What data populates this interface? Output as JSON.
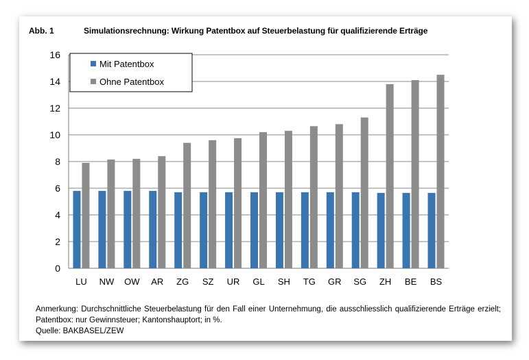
{
  "header": {
    "figure_label": "Abb. 1",
    "title": "Simulationsrechnung: Wirkung Patentbox auf Steuerbelastung für qualifizierende Erträge"
  },
  "footer": {
    "note": "Anmerkung: Durchschnittliche Steuerbelastung für den Fall einer Unternehmung, die ausschliesslich qualifizierende Erträge erzielt; Patentbox: nur Gewinnsteuer; Kantonshauptort; in %.",
    "source": "Quelle: BAKBASEL/ZEW"
  },
  "chart_data": {
    "type": "bar",
    "categories": [
      "LU",
      "NW",
      "OW",
      "AR",
      "ZG",
      "SZ",
      "UR",
      "GL",
      "SH",
      "TG",
      "GR",
      "SG",
      "ZH",
      "BE",
      "BS"
    ],
    "series": [
      {
        "name": "Mit Patentbox",
        "color": "#3a75b0",
        "values": [
          5.8,
          5.8,
          5.8,
          5.8,
          5.7,
          5.7,
          5.7,
          5.7,
          5.7,
          5.7,
          5.7,
          5.7,
          5.65,
          5.65,
          5.65
        ]
      },
      {
        "name": "Ohne Patentbox",
        "color": "#8c8c8c",
        "values": [
          7.9,
          8.15,
          8.2,
          8.4,
          9.4,
          9.6,
          9.75,
          10.2,
          10.3,
          10.65,
          10.8,
          11.3,
          13.8,
          14.1,
          14.5
        ]
      }
    ],
    "ylim": [
      0,
      16
    ],
    "yticks": [
      "0",
      "2",
      "4",
      "6",
      "8",
      "10",
      "12",
      "14",
      "16"
    ],
    "grid": true,
    "legend_position": "top-left"
  }
}
